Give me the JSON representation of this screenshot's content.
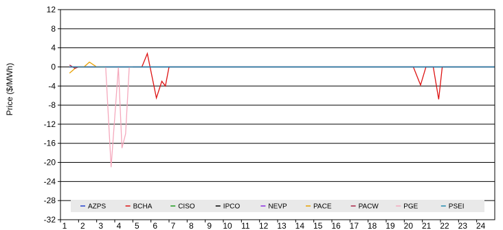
{
  "chart_data": {
    "type": "line",
    "ylabel": "Price ($/MWh)",
    "xlabel": "",
    "ylim": [
      -32,
      12
    ],
    "xlim": [
      1,
      25
    ],
    "grid": "horizontal",
    "legend_placement": "bottom",
    "yticks": [
      12,
      8,
      4,
      0,
      -4,
      -8,
      -12,
      -16,
      -20,
      -24,
      -28,
      -32
    ],
    "xticks": [
      "1",
      "2",
      "3",
      "4",
      "5",
      "6",
      "7",
      "8",
      "9",
      "10",
      "11",
      "12",
      "13",
      "14",
      "15",
      "16",
      "17",
      "18",
      "19",
      "20",
      "21",
      "22",
      "23",
      "24"
    ],
    "series": [
      {
        "name": "AZPS",
        "color": "#1f3fd0",
        "points": [
          [
            1.5,
            0
          ],
          [
            25,
            0
          ]
        ]
      },
      {
        "name": "BCHA",
        "color": "#dd1111",
        "points": [
          [
            1.5,
            0
          ],
          [
            5.5,
            0
          ],
          [
            5.8,
            2.8
          ],
          [
            6.3,
            -6.5
          ],
          [
            6.6,
            -3.0
          ],
          [
            6.8,
            -4.0
          ],
          [
            7.0,
            0
          ],
          [
            20.5,
            0
          ],
          [
            20.9,
            -3.8
          ],
          [
            21.2,
            0
          ],
          [
            21.6,
            0
          ],
          [
            21.9,
            -6.8
          ],
          [
            22.1,
            0
          ],
          [
            25,
            0
          ]
        ]
      },
      {
        "name": "CISO",
        "color": "#1a9a1a",
        "points": [
          [
            1.5,
            0
          ],
          [
            25,
            0
          ]
        ]
      },
      {
        "name": "IPCO",
        "color": "#000000",
        "points": [
          [
            1.5,
            0
          ],
          [
            25,
            0
          ]
        ]
      },
      {
        "name": "NEVP",
        "color": "#8a2be2",
        "points": [
          [
            1.5,
            0
          ],
          [
            25,
            0
          ]
        ]
      },
      {
        "name": "PACE",
        "color": "#e8a000",
        "points": [
          [
            1.5,
            -1.3
          ],
          [
            1.9,
            0
          ],
          [
            2.3,
            0
          ],
          [
            2.6,
            1.0
          ],
          [
            3.0,
            0
          ],
          [
            3.5,
            0
          ]
        ]
      },
      {
        "name": "PACW",
        "color": "#aa2244",
        "points": [
          [
            1.5,
            0.4
          ],
          [
            1.8,
            -0.3
          ],
          [
            2.0,
            0
          ],
          [
            3.2,
            0
          ]
        ]
      },
      {
        "name": "PGE",
        "color": "#f5a8bc",
        "points": [
          [
            3.5,
            0
          ],
          [
            3.8,
            -21.0
          ],
          [
            4.2,
            0
          ],
          [
            4.4,
            -17.0
          ],
          [
            4.6,
            -14.0
          ],
          [
            4.8,
            0
          ],
          [
            5.0,
            0
          ]
        ]
      },
      {
        "name": "PSEI",
        "color": "#1f8ab0",
        "points": [
          [
            1.5,
            0
          ],
          [
            25,
            0
          ]
        ]
      }
    ]
  }
}
